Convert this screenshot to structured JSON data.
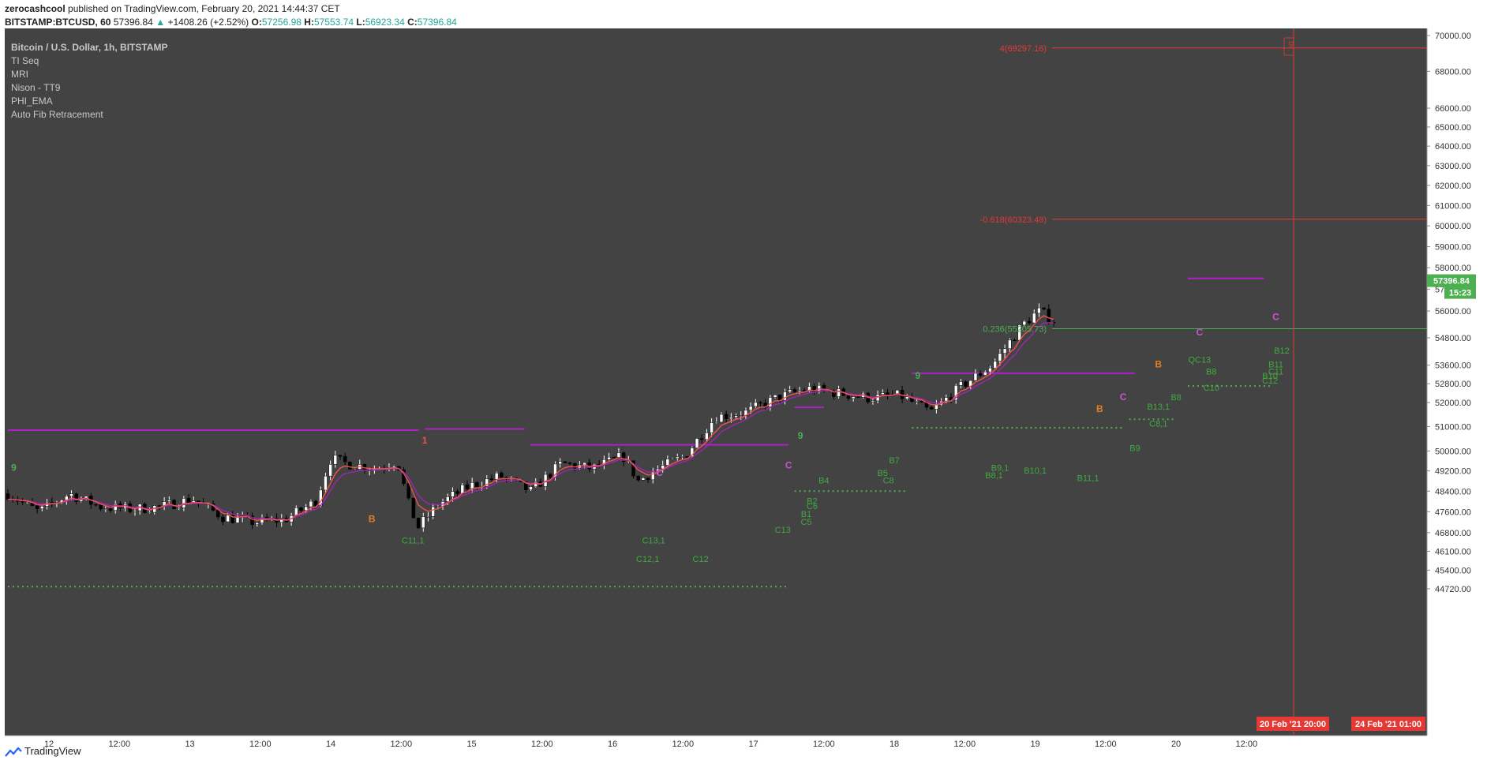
{
  "header": {
    "author": "zerocashcool",
    "published_text": "published on TradingView.com, February 20, 2021 14:44:37 CET",
    "symbol": "BITSTAMP:BTCUSD, 60",
    "last": "57396.84",
    "change": "+1408.26 (+2.52%)",
    "open_label": "O:",
    "open": "57256.98",
    "high_label": "H:",
    "high": "57553.74",
    "low_label": "L:",
    "low": "56923.34",
    "close_label": "C:",
    "close": "57396.84"
  },
  "legend": [
    "Bitcoin / U.S. Dollar, 1h, BITSTAMP",
    "TI Seq",
    "MRI",
    "Nison - TT9",
    "PHI_EMA",
    "Auto Fib Retracement"
  ],
  "colors": {
    "background": "#434343",
    "bull": "#ffffff",
    "bear": "#000000",
    "fib": "#e53935",
    "fib_green": "#4caf50",
    "seq": "#4caf50",
    "ema_red": "#ef5350",
    "ema_purple": "#9c27b0",
    "level": "#b020c8",
    "price_tag": "#4caf50",
    "date_tag": "#e53935"
  },
  "price_tag": {
    "price": "57396.84",
    "countdown": "15:23"
  },
  "fib": [
    {
      "label": "4(69297.16)",
      "value": 69297.16,
      "color": "#e53935"
    },
    {
      "label": "-0.618(60323.48)",
      "value": 60323.48,
      "color": "#e53935"
    },
    {
      "label": "0.236(55205.73)",
      "value": 55205.73,
      "color": "#4caf50"
    }
  ],
  "crosshair_label": "1h",
  "date_tags": [
    "20 Feb '21   20:00",
    "24 Feb '21   01:00"
  ],
  "footer": {
    "brand": "TradingView"
  },
  "chart_data": {
    "type": "candlestick",
    "title": "Bitcoin / U.S. Dollar, 1h, BITSTAMP",
    "x_ticks": [
      "12",
      "12:00",
      "13",
      "12:00",
      "14",
      "12:00",
      "15",
      "12:00",
      "16",
      "12:00",
      "17",
      "12:00",
      "18",
      "12:00",
      "19",
      "12:00",
      "20",
      "12:00"
    ],
    "y_ticks": [
      "70000.00",
      "68000.00",
      "66000.00",
      "65000.00",
      "64000.00",
      "63000.00",
      "62000.00",
      "61000.00",
      "60000.00",
      "59000.00",
      "58000.00",
      "57000.00",
      "56000.00",
      "54800.00",
      "53600.00",
      "52800.00",
      "52000.00",
      "51000.00",
      "50000.00",
      "49200.00",
      "48400.00",
      "47600.00",
      "46800.00",
      "46100.00",
      "45400.00",
      "44720.00"
    ],
    "scale": "log",
    "ylim": [
      44300,
      70600
    ],
    "hours": 204,
    "path": [
      [
        0,
        48300
      ],
      [
        6,
        47600
      ],
      [
        12,
        48300
      ],
      [
        18,
        47800
      ],
      [
        24,
        47700
      ],
      [
        30,
        47800
      ],
      [
        36,
        48100
      ],
      [
        42,
        47400
      ],
      [
        48,
        47200
      ],
      [
        54,
        47300
      ],
      [
        60,
        48000
      ],
      [
        63,
        49700
      ],
      [
        66,
        49500
      ],
      [
        72,
        49300
      ],
      [
        76,
        49600
      ],
      [
        78,
        48000
      ],
      [
        80,
        47000
      ],
      [
        84,
        47900
      ],
      [
        90,
        48600
      ],
      [
        96,
        49000
      ],
      [
        102,
        48400
      ],
      [
        108,
        49500
      ],
      [
        114,
        49300
      ],
      [
        120,
        49800
      ],
      [
        123,
        48800
      ],
      [
        126,
        49200
      ],
      [
        132,
        49800
      ],
      [
        138,
        51400
      ],
      [
        144,
        51600
      ],
      [
        150,
        52200
      ],
      [
        156,
        52600
      ],
      [
        162,
        52400
      ],
      [
        168,
        52200
      ],
      [
        174,
        52300
      ],
      [
        180,
        51600
      ],
      [
        186,
        52700
      ],
      [
        192,
        53600
      ],
      [
        198,
        55400
      ],
      [
        201,
        56000
      ],
      [
        204,
        55600
      ],
      [
        207,
        55400
      ],
      [
        210,
        56000
      ],
      [
        212,
        57400
      ]
    ],
    "levels": [
      {
        "from": 0,
        "to": 70,
        "value": 50850
      },
      {
        "from": 71,
        "to": 88,
        "value": 50900
      },
      {
        "from": 89,
        "to": 133,
        "value": 50250
      },
      {
        "from": 134,
        "to": 139,
        "value": 51800
      },
      {
        "from": 154,
        "to": 192,
        "value": 53250
      },
      {
        "from": 201,
        "to": 214,
        "value": 57500
      }
    ],
    "dotted_levels": [
      {
        "from": 0,
        "to": 133,
        "value": 44800
      },
      {
        "from": 134,
        "to": 153,
        "value": 48400
      },
      {
        "from": 154,
        "to": 190,
        "value": 50950
      },
      {
        "from": 191,
        "to": 199,
        "value": 51300
      },
      {
        "from": 201,
        "to": 215,
        "value": 52700
      }
    ],
    "seq_labels": [
      {
        "text": "C11,1",
        "x": 69,
        "price": 46400
      },
      {
        "text": "C13,1",
        "x": 110,
        "price": 46400
      },
      {
        "text": "C12,1",
        "x": 109,
        "price": 45700
      },
      {
        "text": "C12",
        "x": 118,
        "price": 45700
      },
      {
        "text": "C13",
        "x": 132,
        "price": 46800
      },
      {
        "text": "B4",
        "x": 139,
        "price": 48700
      },
      {
        "text": "B2",
        "x": 137,
        "price": 47900
      },
      {
        "text": "C6",
        "x": 137,
        "price": 47700
      },
      {
        "text": "B1",
        "x": 136,
        "price": 47400
      },
      {
        "text": "C5",
        "x": 136,
        "price": 47100
      },
      {
        "text": "B7",
        "x": 151,
        "price": 49500
      },
      {
        "text": "B5",
        "x": 149,
        "price": 49000
      },
      {
        "text": "C8",
        "x": 150,
        "price": 48700
      },
      {
        "text": "B9,1",
        "x": 169,
        "price": 49200
      },
      {
        "text": "B8,1",
        "x": 168,
        "price": 48900
      },
      {
        "text": "B10,1",
        "x": 175,
        "price": 49100
      },
      {
        "text": "B11,1",
        "x": 184,
        "price": 48800
      },
      {
        "text": "C8,1",
        "x": 196,
        "price": 51000
      },
      {
        "text": "B9",
        "x": 192,
        "price": 50000
      },
      {
        "text": "B13,1",
        "x": 196,
        "price": 51700
      },
      {
        "text": "B8",
        "x": 199,
        "price": 52100
      },
      {
        "text": "QC13",
        "x": 203,
        "price": 53700
      },
      {
        "text": "B8",
        "x": 205,
        "price": 53200
      },
      {
        "text": "C10",
        "x": 205,
        "price": 52500
      },
      {
        "text": "B12",
        "x": 217,
        "price": 54100
      },
      {
        "text": "B11",
        "x": 216,
        "price": 53500
      },
      {
        "text": "C11",
        "x": 216,
        "price": 53200
      },
      {
        "text": "B10",
        "x": 215,
        "price": 53000
      },
      {
        "text": "C12",
        "x": 215,
        "price": 52800
      }
    ],
    "markers": [
      {
        "text": "B",
        "x": 62,
        "price": 47200,
        "color": "#e67e22"
      },
      {
        "text": "B",
        "x": 186,
        "price": 51600,
        "color": "#e67e22"
      },
      {
        "text": "B",
        "x": 196,
        "price": 53500,
        "color": "#e67e22"
      },
      {
        "text": "C",
        "x": 111,
        "price": 49000,
        "color": "#d050d8"
      },
      {
        "text": "C",
        "x": 133,
        "price": 49300,
        "color": "#d050d8"
      },
      {
        "text": "C",
        "x": 190,
        "price": 52100,
        "color": "#d050d8"
      },
      {
        "text": "C",
        "x": 203,
        "price": 54900,
        "color": "#d050d8"
      },
      {
        "text": "C",
        "x": 216,
        "price": 55600,
        "color": "#d050d8"
      },
      {
        "text": "9",
        "x": 1,
        "price": 49200,
        "color": "#4caf50"
      },
      {
        "text": "9",
        "x": 135,
        "price": 50500,
        "color": "#4caf50"
      },
      {
        "text": "9",
        "x": 155,
        "price": 53000,
        "color": "#4caf50"
      },
      {
        "text": "1",
        "x": 71,
        "price": 50300,
        "color": "#ef5350"
      }
    ]
  }
}
